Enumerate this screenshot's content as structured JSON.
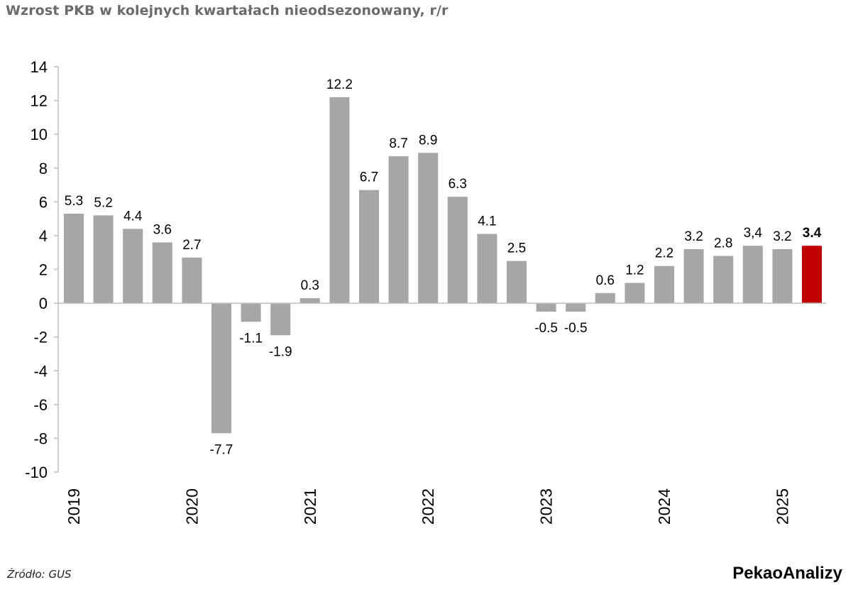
{
  "title": "Wzrost PKB w kolejnych kwartałach nieodsezonowany, r/r",
  "source": "Źródło: GUS",
  "brand": "PekaoAnalizy",
  "colors": {
    "bar": "#a6a6a6",
    "highlight": "#c00000",
    "axis": "#bfbfbf"
  },
  "chart_data": {
    "type": "bar",
    "title": "Wzrost PKB w kolejnych kwartałach nieodsezonowany, r/r",
    "xlabel": "",
    "ylabel": "",
    "ylim": [
      -10,
      14
    ],
    "yticks": [
      "14",
      "12",
      "10",
      "8",
      "6",
      "4",
      "2",
      "0",
      "-2",
      "-4",
      "-6",
      "-8",
      "-10"
    ],
    "ytick_values": [
      14,
      12,
      10,
      8,
      6,
      4,
      2,
      0,
      -2,
      -4,
      -6,
      -8,
      -10
    ],
    "values": [
      5.3,
      5.2,
      4.4,
      3.6,
      2.7,
      -7.7,
      -1.1,
      -1.9,
      0.3,
      12.2,
      6.7,
      8.7,
      8.9,
      6.3,
      4.1,
      2.5,
      -0.5,
      -0.5,
      0.6,
      1.2,
      2.2,
      3.2,
      2.8,
      3.4,
      3.2,
      3.4
    ],
    "labels": [
      "5.3",
      "5.2",
      "4.4",
      "3.6",
      "2.7",
      "-7.7",
      "-1.1",
      "-1.9",
      "0.3",
      "12.2",
      "6.7",
      "8.7",
      "8.9",
      "6.3",
      "4.1",
      "2.5",
      "-0.5",
      "-0.5",
      "0.6",
      "1.2",
      "2.2",
      "3.2",
      "2.8",
      "3,4",
      "3.2",
      "3.4"
    ],
    "highlight_index": 25,
    "year_labels": [
      {
        "label": "2019",
        "index": 0
      },
      {
        "label": "2020",
        "index": 4
      },
      {
        "label": "2021",
        "index": 8
      },
      {
        "label": "2022",
        "index": 12
      },
      {
        "label": "2023",
        "index": 16
      },
      {
        "label": "2024",
        "index": 20
      },
      {
        "label": "2025",
        "index": 24
      }
    ],
    "grid": false,
    "legend": "none"
  }
}
